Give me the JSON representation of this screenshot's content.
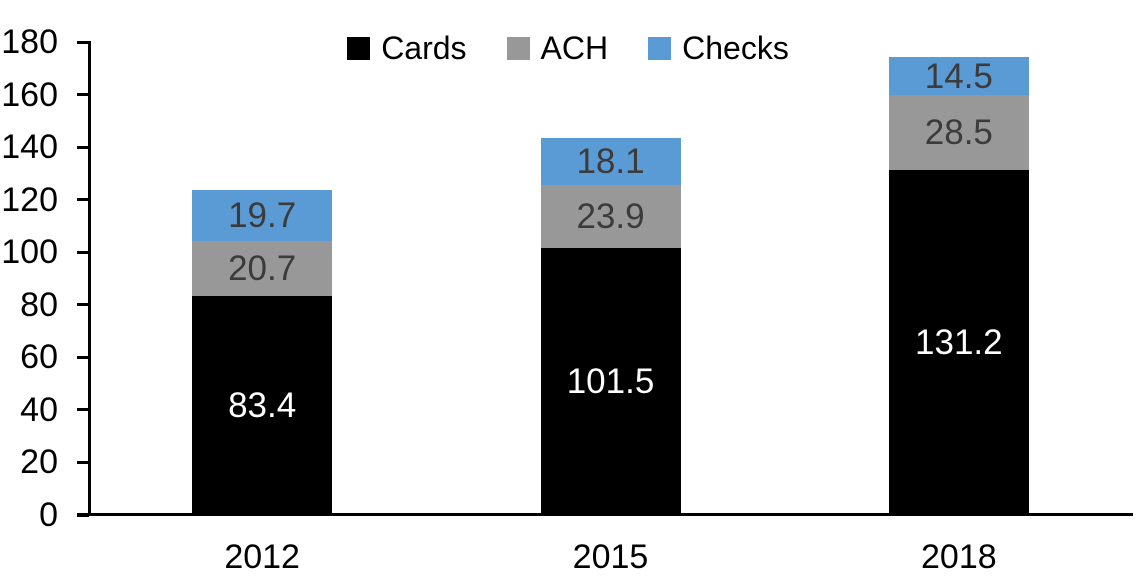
{
  "figure": {
    "background_color": "#FFFFFF",
    "axis_color": "#000000",
    "tick_label_color": "#000000",
    "x_tick_label_color": "#000000"
  },
  "chart_data": {
    "type": "bar",
    "stacked": true,
    "categories": [
      "2012",
      "2015",
      "2018"
    ],
    "series": [
      {
        "name": "Cards",
        "color": "#000000",
        "label_color": "#FFFFFF",
        "values": [
          83.4,
          101.5,
          131.2
        ]
      },
      {
        "name": "ACH",
        "color": "#989898",
        "label_color": "#3B3B3B",
        "values": [
          20.7,
          23.9,
          28.5
        ]
      },
      {
        "name": "Checks",
        "color": "#5B9BD5",
        "label_color": "#3B3B3B",
        "values": [
          19.7,
          18.1,
          14.5
        ]
      }
    ],
    "totals": [
      123.8,
      143.5,
      174.2
    ],
    "ylim": [
      0,
      180
    ],
    "ytick_step": 20,
    "ytick_labels": [
      "0",
      "20",
      "40",
      "60",
      "80",
      "100",
      "120",
      "140",
      "160",
      "180"
    ],
    "grid": false,
    "data_labels": true,
    "data_label_decimals": 1,
    "legend_position": "top",
    "legend_items": [
      "Cards",
      "ACH",
      "Checks"
    ]
  }
}
